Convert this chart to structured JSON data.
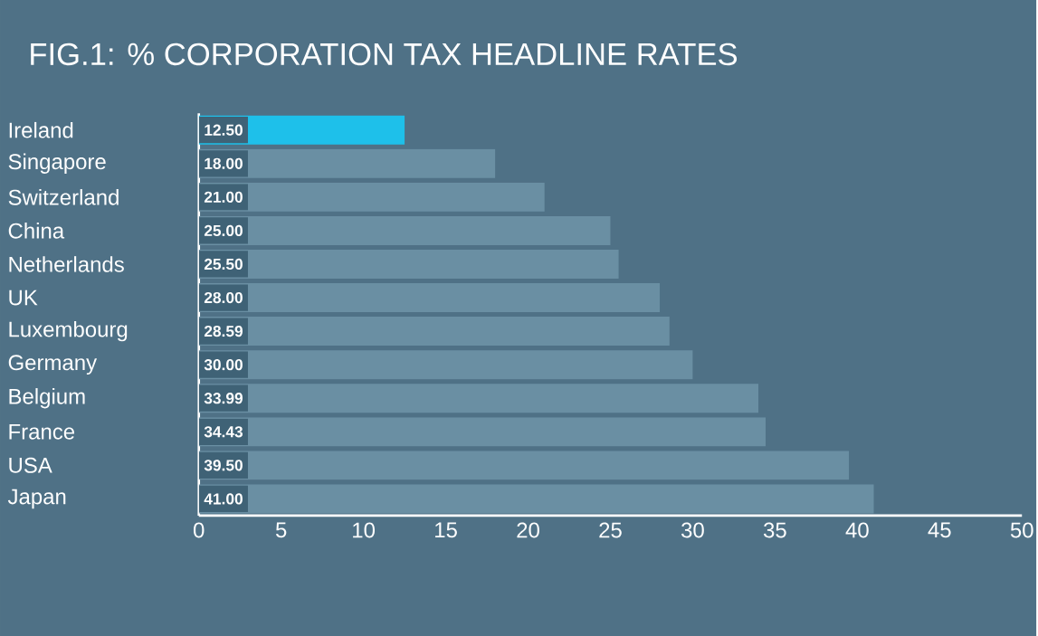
{
  "chart_data": {
    "type": "bar",
    "orientation": "horizontal",
    "title": "FIG.1: % CORPORATION TAX HEADLINE RATES",
    "categories": [
      "Ireland",
      "Singapore",
      "Switzerland",
      "China",
      "Netherlands",
      "UK",
      "Luxembourg",
      "Germany",
      "Belgium",
      "France",
      "USA",
      "Japan"
    ],
    "values": [
      12.5,
      18,
      21,
      25,
      25.5,
      28,
      28.59,
      30,
      33.99,
      34.43,
      39.5,
      41
    ],
    "value_labels": [
      "12.50",
      "18.00",
      "21.00",
      "25.00",
      "25.50",
      "28.00",
      "28.59",
      "30.00",
      "33.99",
      "34.43",
      "39.50",
      "41.00"
    ],
    "colors": [
      "#1ec0ea",
      "#6a8fa3",
      "#6a8fa3",
      "#6a8fa3",
      "#6a8fa3",
      "#6a8fa3",
      "#6a8fa3",
      "#6a8fa3",
      "#6a8fa3",
      "#6a8fa3",
      "#6a8fa3",
      "#6a8fa3"
    ],
    "xlim": [
      0,
      50
    ],
    "xticks": [
      0,
      5,
      10,
      15,
      20,
      25,
      30,
      35,
      40,
      45,
      50
    ],
    "grid": false
  }
}
